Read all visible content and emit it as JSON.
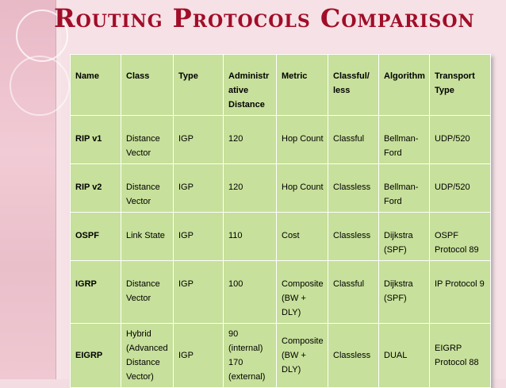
{
  "slide": {
    "title": "Routing Protocols Comparison"
  },
  "table": {
    "headers": [
      "Name",
      "Class",
      "Type",
      "Administrative Distance",
      "Metric",
      "Classful/ less",
      "Algorithm",
      "Transport Type"
    ],
    "rows": [
      [
        "RIP v1",
        "Distance Vector",
        "IGP",
        "120",
        "Hop Count",
        "Classful",
        "Bellman-Ford",
        "UDP/520"
      ],
      [
        "RIP v2",
        "Distance Vector",
        "IGP",
        "120",
        "Hop Count",
        "Classless",
        "Bellman-Ford",
        "UDP/520"
      ],
      [
        "OSPF",
        "Link State",
        "IGP",
        "110",
        "Cost",
        "Classless",
        "Dijkstra (SPF)",
        "OSPF Protocol 89"
      ],
      [
        "IGRP",
        "Distance Vector",
        "IGP",
        "100",
        "Composite (BW + DLY)",
        "Classful",
        "Dijkstra (SPF)",
        "IP Protocol 9"
      ],
      [
        "EIGRP",
        "Hybrid (Advanced Distance Vector)",
        "IGP",
        "90 (internal) 170 (external)",
        "Composite (BW + DLY)",
        "Classless",
        "DUAL",
        "EIGRP Protocol 88"
      ]
    ]
  },
  "colors": {
    "title": "#a10d28",
    "cell_bg": "#c7e09b",
    "cell_border": "#ffffff",
    "background": "#f5e1e6"
  }
}
